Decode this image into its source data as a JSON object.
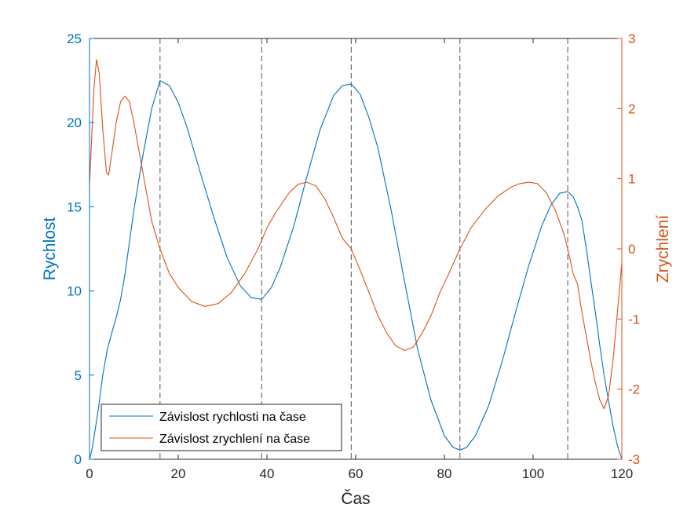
{
  "chart_data": {
    "type": "line",
    "xlabel": "Čas",
    "ylabel_left": "Rychlost",
    "ylabel_right": "Zrychlení",
    "xlim": [
      0,
      120
    ],
    "ylim_left": [
      0,
      25
    ],
    "ylim_right": [
      -3,
      3
    ],
    "x_ticks": [
      0,
      20,
      40,
      60,
      80,
      100,
      120
    ],
    "y_left_ticks": [
      0,
      5,
      10,
      15,
      20,
      25
    ],
    "y_right_ticks": [
      -3,
      -2,
      -1,
      0,
      1,
      2,
      3
    ],
    "grid": false,
    "legend_position": "bottom-left",
    "vertical_markers": [
      15.9,
      38.8,
      59.0,
      83.5,
      107.8
    ],
    "colors": {
      "left_axis": "#0072BD",
      "right_axis": "#D95319",
      "marker": "#555555"
    },
    "series": [
      {
        "name": "Závislost rychlosti na čase",
        "axis": "left",
        "color": "#0072BD",
        "points": [
          [
            0,
            0
          ],
          [
            0.5,
            0.5
          ],
          [
            1,
            1.3
          ],
          [
            2,
            3.0
          ],
          [
            3,
            5.0
          ],
          [
            4,
            6.5
          ],
          [
            5,
            7.5
          ],
          [
            6,
            8.4
          ],
          [
            7,
            9.5
          ],
          [
            8,
            11.0
          ],
          [
            10,
            14.8
          ],
          [
            12,
            18.0
          ],
          [
            14,
            20.8
          ],
          [
            15.9,
            22.5
          ],
          [
            18,
            22.2
          ],
          [
            20,
            21.2
          ],
          [
            22,
            19.7
          ],
          [
            25,
            17.0
          ],
          [
            28,
            14.4
          ],
          [
            31,
            12.0
          ],
          [
            34,
            10.3
          ],
          [
            36.5,
            9.6
          ],
          [
            38.8,
            9.5
          ],
          [
            41,
            10.2
          ],
          [
            43,
            11.4
          ],
          [
            46,
            13.8
          ],
          [
            49,
            16.8
          ],
          [
            52,
            19.6
          ],
          [
            55,
            21.6
          ],
          [
            57,
            22.2
          ],
          [
            59,
            22.3
          ],
          [
            61,
            21.7
          ],
          [
            63,
            20.3
          ],
          [
            65,
            18.5
          ],
          [
            68,
            14.8
          ],
          [
            71,
            10.6
          ],
          [
            74,
            6.5
          ],
          [
            77,
            3.5
          ],
          [
            80,
            1.4
          ],
          [
            82,
            0.7
          ],
          [
            83.5,
            0.55
          ],
          [
            85,
            0.7
          ],
          [
            87,
            1.4
          ],
          [
            90,
            3.2
          ],
          [
            93,
            5.8
          ],
          [
            96,
            8.7
          ],
          [
            99,
            11.5
          ],
          [
            102,
            13.9
          ],
          [
            104,
            15.1
          ],
          [
            106,
            15.8
          ],
          [
            107.8,
            15.9
          ],
          [
            109,
            15.6
          ],
          [
            110,
            15.0
          ],
          [
            111,
            14.2
          ],
          [
            112,
            12.5
          ],
          [
            113,
            10.6
          ],
          [
            114,
            8.8
          ],
          [
            115,
            6.8
          ],
          [
            116,
            5.0
          ],
          [
            117,
            3.5
          ],
          [
            118,
            2.0
          ],
          [
            119,
            0.8
          ],
          [
            120,
            0
          ]
        ]
      },
      {
        "name": "Závislost zrychlení na čase",
        "axis": "right",
        "color": "#D95319",
        "points": [
          [
            0,
            0.9
          ],
          [
            0.5,
            1.6
          ],
          [
            1,
            2.3
          ],
          [
            1.6,
            2.7
          ],
          [
            2.2,
            2.5
          ],
          [
            3,
            1.7
          ],
          [
            3.8,
            1.1
          ],
          [
            4.3,
            1.05
          ],
          [
            5,
            1.35
          ],
          [
            6,
            1.8
          ],
          [
            7,
            2.1
          ],
          [
            8,
            2.18
          ],
          [
            9,
            2.1
          ],
          [
            10,
            1.8
          ],
          [
            12,
            1.1
          ],
          [
            14,
            0.4
          ],
          [
            15.9,
            0.0
          ],
          [
            18,
            -0.35
          ],
          [
            20,
            -0.55
          ],
          [
            23,
            -0.75
          ],
          [
            26,
            -0.82
          ],
          [
            29,
            -0.78
          ],
          [
            32,
            -0.62
          ],
          [
            35,
            -0.35
          ],
          [
            38,
            0.0
          ],
          [
            40,
            0.3
          ],
          [
            42,
            0.52
          ],
          [
            45,
            0.8
          ],
          [
            47,
            0.92
          ],
          [
            49,
            0.95
          ],
          [
            51,
            0.9
          ],
          [
            53,
            0.72
          ],
          [
            55,
            0.45
          ],
          [
            57,
            0.15
          ],
          [
            59,
            0.0
          ],
          [
            61,
            -0.3
          ],
          [
            63,
            -0.62
          ],
          [
            65,
            -0.95
          ],
          [
            67,
            -1.2
          ],
          [
            69,
            -1.38
          ],
          [
            71,
            -1.45
          ],
          [
            73,
            -1.4
          ],
          [
            75,
            -1.2
          ],
          [
            77,
            -0.95
          ],
          [
            79,
            -0.62
          ],
          [
            81,
            -0.35
          ],
          [
            83.5,
            0.0
          ],
          [
            86,
            0.3
          ],
          [
            89,
            0.55
          ],
          [
            92,
            0.75
          ],
          [
            95,
            0.88
          ],
          [
            97,
            0.93
          ],
          [
            99,
            0.95
          ],
          [
            101,
            0.93
          ],
          [
            103,
            0.8
          ],
          [
            105,
            0.55
          ],
          [
            107,
            0.2
          ],
          [
            107.8,
            0.0
          ],
          [
            109,
            -0.35
          ],
          [
            110,
            -0.5
          ],
          [
            111,
            -0.9
          ],
          [
            112,
            -1.25
          ],
          [
            113,
            -1.6
          ],
          [
            114,
            -1.9
          ],
          [
            115,
            -2.15
          ],
          [
            116,
            -2.28
          ],
          [
            117,
            -2.1
          ],
          [
            118,
            -1.6
          ],
          [
            119,
            -0.9
          ],
          [
            120,
            -0.2
          ]
        ]
      }
    ]
  }
}
